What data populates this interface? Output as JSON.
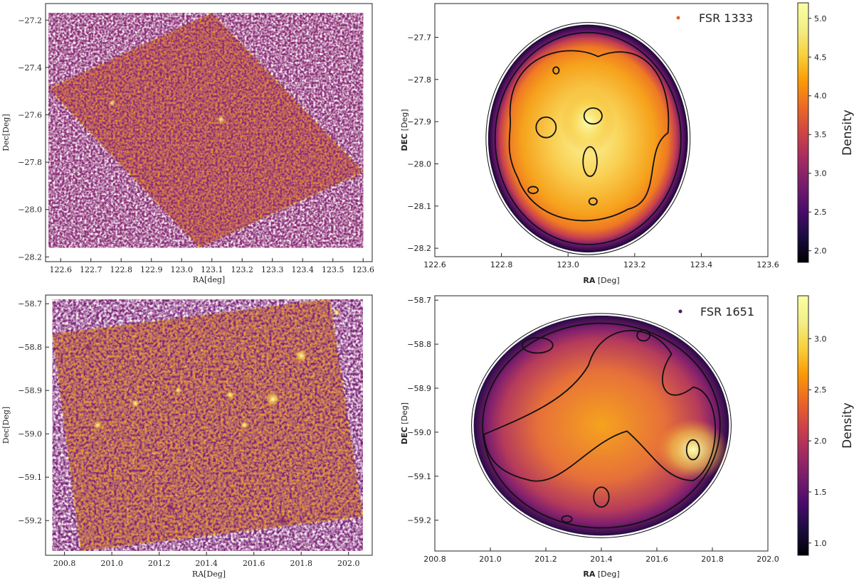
{
  "chart_data": [
    {
      "type": "heatmap",
      "panel": "top-left",
      "xlabel": "RA[deg]",
      "ylabel": "Dec[Deg]",
      "xlim": [
        122.55,
        123.63
      ],
      "ylim": [
        -28.22,
        -27.13
      ],
      "x_ticks": [
        122.6,
        122.7,
        122.8,
        122.9,
        123.0,
        123.1,
        123.2,
        123.3,
        123.4,
        123.5,
        123.6
      ],
      "y_ticks": [
        -27.2,
        -27.4,
        -27.6,
        -27.8,
        -28.0,
        -28.2
      ],
      "x_tick_labels": [
        "122.6",
        "122.7",
        "122.8",
        "122.9",
        "123.0",
        "123.1",
        "123.2",
        "123.3",
        "123.4",
        "123.5",
        "123.6"
      ],
      "y_tick_labels": [
        "−27.2",
        "−27.4",
        "−27.6",
        "−27.8",
        "−28.0",
        "−28.2"
      ],
      "footprint": [
        [
          122.56,
          -27.49
        ],
        [
          123.1,
          -27.17
        ],
        [
          123.6,
          -27.84
        ],
        [
          123.06,
          -28.16
        ]
      ]
    },
    {
      "type": "heatmap",
      "panel": "top-right",
      "title": "",
      "legend": "FSR 1333",
      "legend_color": "#e8623a",
      "xlabel_bold": "RA",
      "xlabel_rest": " [Deg]",
      "ylabel_bold": "DEC",
      "ylabel_rest": " [Deg]",
      "xlim": [
        122.6,
        123.6
      ],
      "ylim": [
        -28.22,
        -27.62
      ],
      "x_ticks": [
        122.6,
        122.8,
        123.0,
        123.2,
        123.4,
        123.6
      ],
      "y_ticks": [
        -27.7,
        -27.8,
        -27.9,
        -28.0,
        -28.1,
        -28.2
      ],
      "x_tick_labels": [
        "122.6",
        "122.8",
        "123.0",
        "123.2",
        "123.4",
        "123.6"
      ],
      "y_tick_labels": [
        "−27.7",
        "−27.8",
        "−27.9",
        "−28.0",
        "−28.1",
        "−28.2"
      ],
      "colorbar": {
        "label": "Density",
        "range": [
          1.85,
          5.2
        ],
        "ticks": [
          2.0,
          2.5,
          3.0,
          3.5,
          4.0,
          4.5,
          5.0
        ],
        "tick_labels": [
          "2.0",
          "2.5",
          "3.0",
          "3.5",
          "4.0",
          "4.5",
          "5.0"
        ]
      },
      "region": {
        "center": [
          123.06,
          -27.94
        ],
        "radius_ra": 0.3,
        "radius_dec": 0.27
      },
      "peak": [
        123.06,
        -27.9
      ]
    },
    {
      "type": "heatmap",
      "panel": "bottom-left",
      "xlabel": "RA[Deg]",
      "ylabel": "Dec[Deg]",
      "xlim": [
        200.72,
        202.1
      ],
      "ylim": [
        -59.28,
        -58.68
      ],
      "x_ticks": [
        200.8,
        201.0,
        201.2,
        201.4,
        201.6,
        201.8,
        202.0
      ],
      "y_ticks": [
        -58.7,
        -58.8,
        -58.9,
        -59.0,
        -59.1,
        -59.2
      ],
      "x_tick_labels": [
        "200.8",
        "201.0",
        "201.2",
        "201.4",
        "201.6",
        "201.8",
        "202.0"
      ],
      "y_tick_labels": [
        "−58.7",
        "−58.8",
        "−58.9",
        "−59.0",
        "−59.1",
        "−59.2"
      ],
      "footprint": [
        [
          200.75,
          -58.77
        ],
        [
          201.92,
          -58.69
        ],
        [
          202.06,
          -59.19
        ],
        [
          200.87,
          -59.27
        ]
      ]
    },
    {
      "type": "heatmap",
      "panel": "bottom-right",
      "legend": "FSR 1651",
      "legend_color": "#4a1a6e",
      "xlabel_bold": "RA",
      "xlabel_rest": " [Deg]",
      "ylabel_bold": "DEC",
      "ylabel_rest": " [Deg]",
      "xlim": [
        200.8,
        202.0
      ],
      "ylim": [
        -59.27,
        -58.69
      ],
      "x_ticks": [
        200.8,
        201.0,
        201.2,
        201.4,
        201.6,
        201.8,
        202.0
      ],
      "y_ticks": [
        -58.7,
        -58.8,
        -58.9,
        -59.0,
        -59.1,
        -59.2
      ],
      "x_tick_labels": [
        "200.8",
        "201.0",
        "201.2",
        "201.4",
        "201.6",
        "201.8",
        "202.0"
      ],
      "y_tick_labels": [
        "−58.7",
        "−58.8",
        "−58.9",
        "−59.0",
        "−59.1",
        "−59.2"
      ],
      "colorbar": {
        "label": "Density",
        "range": [
          0.88,
          3.42
        ],
        "ticks": [
          1.0,
          1.5,
          2.0,
          2.5,
          3.0
        ],
        "tick_labels": [
          "1.0",
          "1.5",
          "2.0",
          "2.5",
          "3.0"
        ]
      },
      "region": {
        "center": [
          201.4,
          -58.985
        ],
        "radius_ra": 0.46,
        "radius_dec": 0.25
      },
      "peak": [
        201.73,
        -59.04
      ]
    }
  ]
}
